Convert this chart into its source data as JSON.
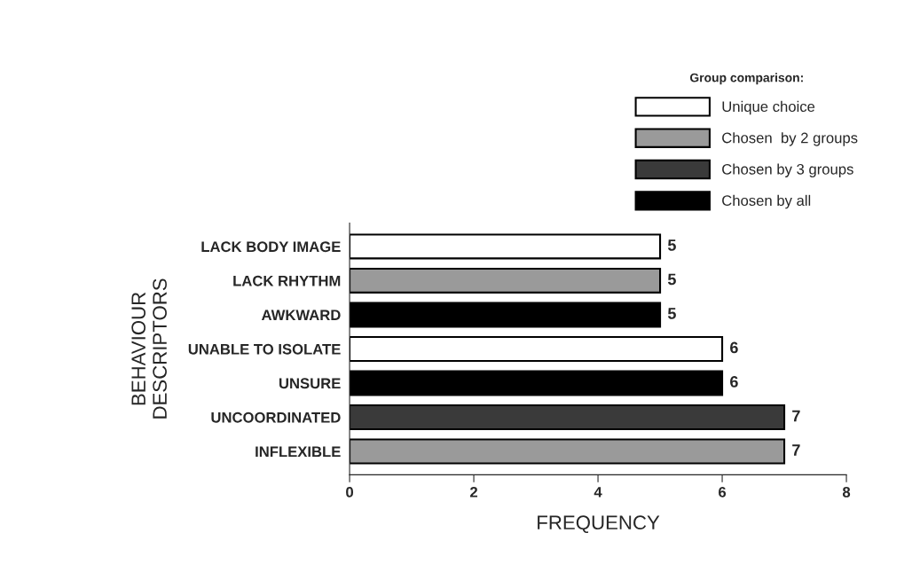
{
  "chart_data": {
    "type": "bar",
    "orientation": "horizontal",
    "xlabel": "FREQUENCY",
    "ylabel": "BEHAVIOUR\nDESCRIPTORS",
    "legend_title": "Group comparison:",
    "categories": [
      "LACK BODY IMAGE",
      "LACK RHYTHM",
      "AWKWARD",
      "UNABLE TO ISOLATE",
      "UNSURE",
      "UNCOORDINATED",
      "INFLEXIBLE"
    ],
    "series": [
      {
        "name": "Unique choice",
        "color": "#ffffff",
        "values": [
          5,
          null,
          null,
          6,
          null,
          null,
          null
        ]
      },
      {
        "name": "Chosen  by 2 groups",
        "color": "#9a9a9a",
        "values": [
          null,
          5,
          null,
          null,
          null,
          null,
          7
        ]
      },
      {
        "name": "Chosen by 3 groups",
        "color": "#3a3a3a",
        "values": [
          null,
          null,
          null,
          null,
          null,
          7,
          null
        ]
      },
      {
        "name": "Chosen by all",
        "color": "#000000",
        "values": [
          null,
          null,
          5,
          null,
          6,
          null,
          null
        ]
      }
    ],
    "xlim": [
      0,
      8
    ],
    "xticks": [
      0,
      2,
      4,
      6,
      8
    ],
    "data_labels": true,
    "legend": "top right",
    "grid": false
  }
}
